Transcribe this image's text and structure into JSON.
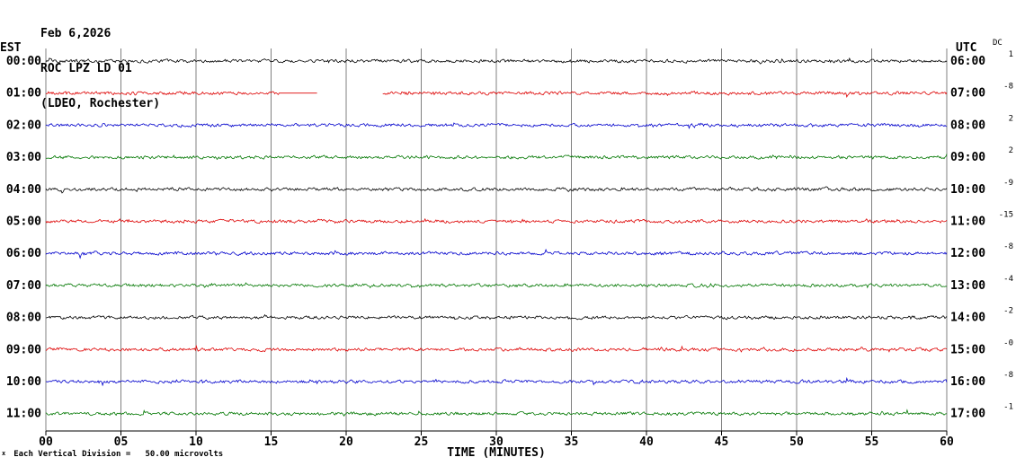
{
  "header": {
    "date": "Feb 6,2026",
    "station": "ROC LPZ LD 01",
    "location": "(LDEO, Rochester)"
  },
  "labels": {
    "left_axis": "EST",
    "right_axis": "UTC",
    "dc": "DC",
    "xlabel": "TIME (MINUTES)",
    "footer": "Each Vertical Division =   50.00 microvolts",
    "footer_mark": "x"
  },
  "chart_data": {
    "type": "line",
    "title": "ROC LPZ LD 01",
    "subtitle": "(LDEO, Rochester) Feb 6,2026",
    "trace_style": "seismic-noise",
    "xlabel": "TIME (MINUTES)",
    "x_range": [
      0,
      60
    ],
    "x_tick_interval": 5,
    "x_ticks": [
      "00",
      "05",
      "10",
      "15",
      "20",
      "25",
      "30",
      "35",
      "40",
      "45",
      "50",
      "55",
      "60"
    ],
    "grid": "vertical-only",
    "scale_microvolts_per_division": 50.0,
    "rows": [
      {
        "est": "00:00",
        "utc": "06:00",
        "dc": "1",
        "color": "#000000"
      },
      {
        "est": "01:00",
        "utc": "07:00",
        "dc": "-8",
        "color": "#dd0000",
        "flat": [
          15.5,
          18.1
        ],
        "gap": [
          18.1,
          22.4
        ]
      },
      {
        "est": "02:00",
        "utc": "08:00",
        "dc": "2",
        "color": "#0000cc"
      },
      {
        "est": "03:00",
        "utc": "09:00",
        "dc": "2",
        "color": "#007700"
      },
      {
        "est": "04:00",
        "utc": "10:00",
        "dc": "-9",
        "color": "#000000"
      },
      {
        "est": "05:00",
        "utc": "11:00",
        "dc": "-15",
        "color": "#dd0000"
      },
      {
        "est": "06:00",
        "utc": "12:00",
        "dc": "-8",
        "color": "#0000cc"
      },
      {
        "est": "07:00",
        "utc": "13:00",
        "dc": "-4",
        "color": "#007700"
      },
      {
        "est": "08:00",
        "utc": "14:00",
        "dc": "-2",
        "color": "#000000"
      },
      {
        "est": "09:00",
        "utc": "15:00",
        "dc": "-0",
        "color": "#dd0000"
      },
      {
        "est": "10:00",
        "utc": "16:00",
        "dc": "-8",
        "color": "#0000cc"
      },
      {
        "est": "11:00",
        "utc": "17:00",
        "dc": "-1",
        "color": "#007700"
      }
    ]
  }
}
